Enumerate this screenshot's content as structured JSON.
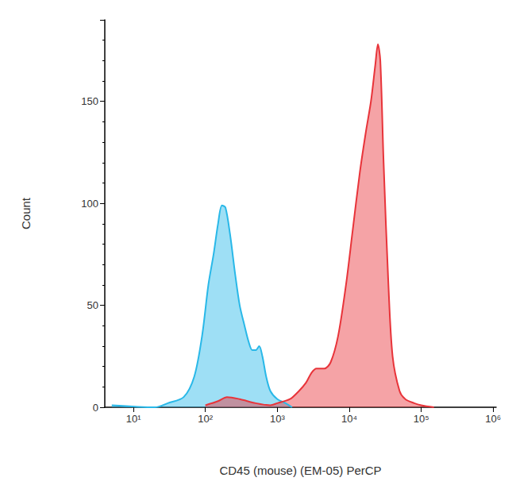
{
  "chart_data": {
    "type": "area",
    "x_label": "CD45 (mouse) (EM-05) PerCP",
    "y_label": "Count",
    "log": "x",
    "grid": false,
    "xlim": [
      4,
      1100000
    ],
    "xticks": [
      {
        "value": 10,
        "label": "10¹"
      },
      {
        "value": 100,
        "label": "10²"
      },
      {
        "value": 1000,
        "label": "10³"
      },
      {
        "value": 10000,
        "label": "10⁴"
      },
      {
        "value": 100000,
        "label": "10⁵"
      },
      {
        "value": 1000000,
        "label": "10⁶"
      }
    ],
    "ylim": [
      0,
      190
    ],
    "yticks": [
      0,
      50,
      100,
      150
    ],
    "series": [
      {
        "color": "#29b8e8",
        "x": [
          5,
          20,
          30,
          50,
          70,
          90,
          110,
          130,
          150,
          170,
          190,
          220,
          260,
          300,
          350,
          400,
          450,
          500,
          560,
          620,
          700,
          800,
          1000,
          1300,
          1600
        ],
        "values": [
          1,
          0,
          2,
          5,
          15,
          35,
          60,
          75,
          90,
          99,
          98,
          85,
          65,
          50,
          40,
          32,
          28,
          28,
          30,
          25,
          15,
          8,
          4,
          2,
          0
        ]
      },
      {
        "color": "#e8343a",
        "x": [
          100,
          150,
          200,
          300,
          500,
          800,
          1000,
          1500,
          2000,
          2500,
          3000,
          3500,
          4500,
          5500,
          7000,
          9000,
          11000,
          14000,
          17000,
          20000,
          23000,
          25000,
          27000,
          30000,
          35000,
          40000,
          50000,
          60000,
          80000,
          100000,
          150000
        ],
        "values": [
          1,
          3,
          5,
          4,
          2,
          1,
          2,
          4,
          8,
          12,
          17,
          19,
          19,
          22,
          35,
          60,
          85,
          115,
          135,
          150,
          168,
          178,
          170,
          120,
          60,
          25,
          8,
          4,
          2,
          1,
          0
        ]
      }
    ]
  }
}
